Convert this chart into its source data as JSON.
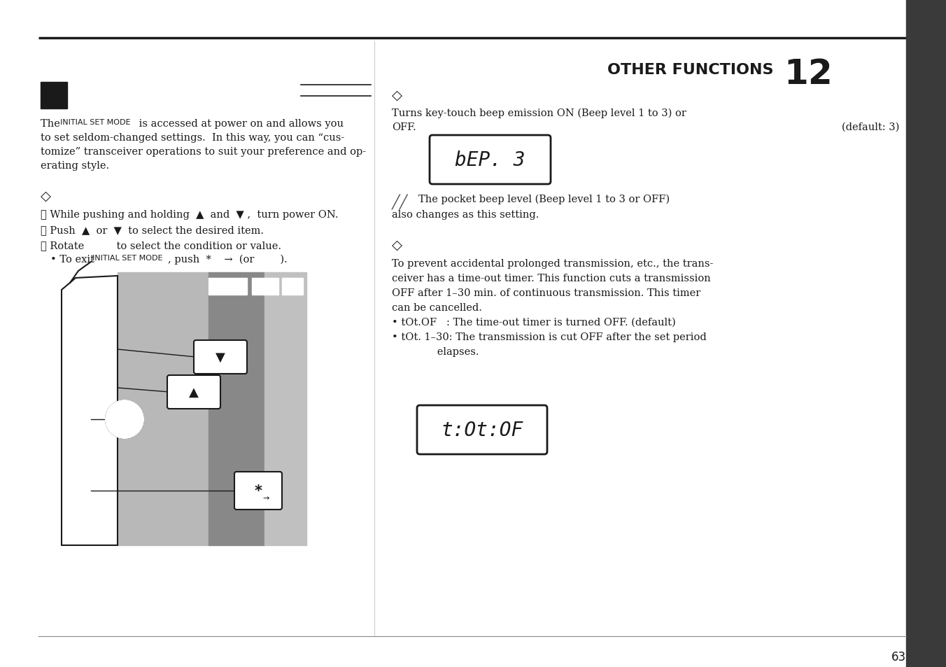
{
  "page_number": "63",
  "chapter_header": "OTHER FUNCTIONS",
  "chapter_number": "12",
  "bg_color": "#ffffff",
  "text_color": "#1a1a1a",
  "sidebar_color": "#3a3a3a",
  "mid_gray": "#aaaaaa",
  "light_gray": "#c8c8c8",
  "dark_gray": "#888888",
  "diamond_char": "◇",
  "beep_display": "bEP. 3",
  "tot_display": "t:Ot:OF"
}
